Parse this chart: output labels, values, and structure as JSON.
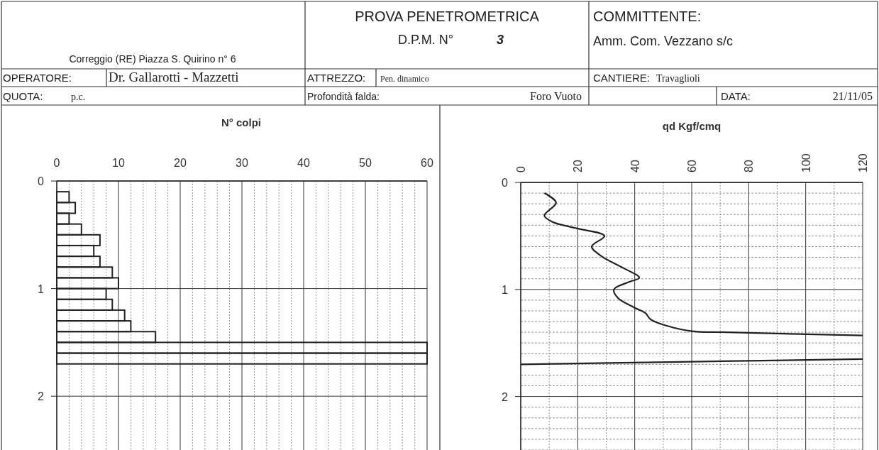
{
  "chart_data": [
    {
      "type": "other",
      "annotations": [
        "Correggio (RE) Piazza S. Quirino n° 6",
        "PROVA PENETROMETRICA",
        "D.P.M. N°",
        "3",
        "COMMITTENTE:",
        "Amm. Com. Vezzano s/c",
        "OPERATORE:",
        "Dr. Gallarotti - Mazzetti",
        "ATTREZZO:",
        "Pen. dinamico",
        "CANTIERE:",
        "Travaglioli",
        "QUOTA:",
        "p.c.",
        "Profondità falda:",
        "Foro Vuoto",
        "DATA:",
        "21/11/05"
      ]
    },
    {
      "type": "bar",
      "orientation": "horizontal",
      "xlabel": "N° colpi",
      "x": [
        0.15,
        0.25,
        0.35,
        0.45,
        0.55,
        0.65,
        0.75,
        0.85,
        0.95,
        1.05,
        1.15,
        1.25,
        1.35,
        1.45,
        1.55,
        1.65
      ],
      "values": [
        2,
        3,
        2,
        4,
        7,
        6,
        7,
        9,
        10,
        8,
        9,
        11,
        12,
        16,
        60,
        60
      ],
      "color": "#ffffff",
      "xlim": [
        0,
        60
      ],
      "xticks": [
        0,
        10,
        20,
        30,
        40,
        50,
        60
      ],
      "ylim": [
        2.5,
        0
      ],
      "yticks": [
        0,
        1,
        2
      ],
      "grid": true
    },
    {
      "type": "line",
      "xlabel": "qd Kgf/cmq",
      "x": [
        8.3,
        12.4,
        8.3,
        11.2,
        19.8,
        29.4,
        24.9,
        28.4,
        36,
        41.6,
        38,
        32.7,
        34.1,
        39.9,
        43.7,
        45.6,
        51.3,
        60,
        72.4,
        120,
        null,
        120,
        60,
        0
      ],
      "values": [
        0.1,
        0.19,
        0.31,
        0.37,
        0.43,
        0.5,
        0.6,
        0.69,
        0.8,
        0.89,
        0.93,
        1.0,
        1.08,
        1.17,
        1.22,
        1.28,
        1.34,
        1.39,
        1.4,
        1.43,
        null,
        1.65,
        1.675,
        1.7
      ],
      "color": "#222222",
      "xlim": [
        0,
        120
      ],
      "xticks": [
        0,
        20,
        40,
        60,
        80,
        100,
        120
      ],
      "ylim": [
        2.5,
        0
      ],
      "yticks": [
        0,
        1,
        2
      ],
      "grid": true
    }
  ]
}
